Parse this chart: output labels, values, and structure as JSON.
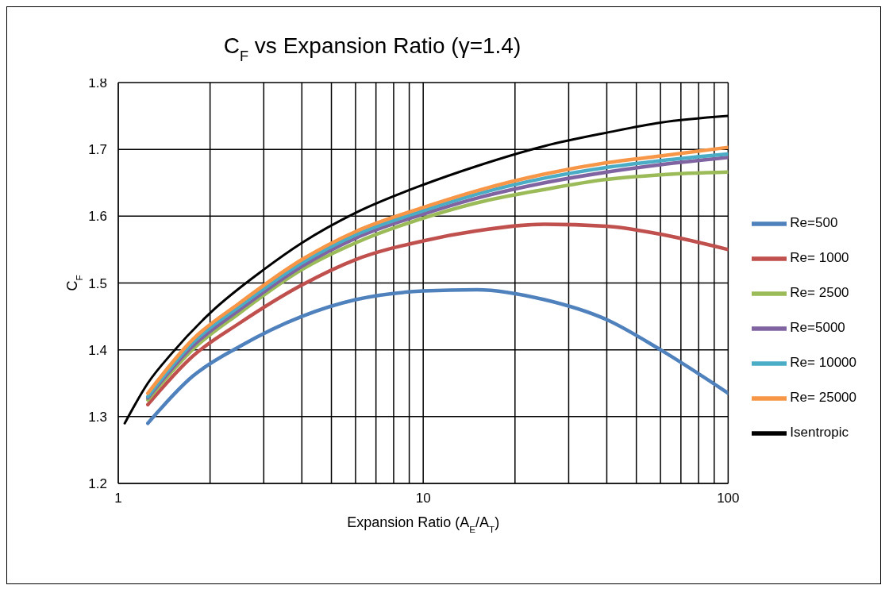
{
  "chart_data": {
    "type": "line",
    "title": "C$_{F}$  vs Expansion Ratio (γ=1.4)",
    "xlabel": "Expansion Ratio (A$_{E}$/A$_{T}$)",
    "ylabel": "C$_{F}$",
    "log": "x",
    "grid": true,
    "legend": "right",
    "marker": "none",
    "line_style": "solid",
    "xlim": [
      1,
      100
    ],
    "ylim": [
      1.2,
      1.8
    ],
    "xticks": [
      1,
      {
        "value": 2,
        "label": null
      },
      {
        "value": 3,
        "label": null
      },
      {
        "value": 4,
        "label": null
      },
      {
        "value": 5,
        "label": null
      },
      {
        "value": 6,
        "label": null
      },
      {
        "value": 7,
        "label": null
      },
      {
        "value": 8,
        "label": null
      },
      {
        "value": 9,
        "label": null
      },
      10,
      {
        "value": 20,
        "label": null
      },
      {
        "value": 30,
        "label": null
      },
      {
        "value": 40,
        "label": null
      },
      {
        "value": 50,
        "label": null
      },
      {
        "value": 60,
        "label": null
      },
      {
        "value": 70,
        "label": null
      },
      {
        "value": 80,
        "label": null
      },
      {
        "value": 90,
        "label": null
      },
      100
    ],
    "yticks": [
      1.2,
      1.3,
      1.4,
      1.5,
      1.6,
      1.7,
      1.8
    ],
    "x": [
      1.25,
      1.75,
      2.5,
      4,
      6,
      10,
      15,
      25,
      40,
      60,
      100
    ],
    "series": [
      {
        "name": "Re=500",
        "color": "#4f81bd",
        "values": [
          1.29,
          1.36,
          1.405,
          1.45,
          1.475,
          1.488,
          1.49,
          1.475,
          1.445,
          1.4,
          1.335
        ]
      },
      {
        "name": "Re= 1000",
        "color": "#c0504d",
        "values": [
          1.318,
          1.39,
          1.44,
          1.497,
          1.535,
          1.563,
          1.578,
          1.588,
          1.585,
          1.573,
          1.55
        ]
      },
      {
        "name": "Re= 2500",
        "color": "#9bbb59",
        "values": [
          1.325,
          1.4,
          1.455,
          1.52,
          1.56,
          1.597,
          1.62,
          1.64,
          1.655,
          1.662,
          1.666
        ]
      },
      {
        "name": "Re=5000",
        "color": "#8064a2",
        "values": [
          1.328,
          1.405,
          1.46,
          1.525,
          1.567,
          1.603,
          1.627,
          1.65,
          1.666,
          1.677,
          1.688
        ]
      },
      {
        "name": "Re= 10000",
        "color": "#4bacc6",
        "values": [
          1.33,
          1.41,
          1.465,
          1.53,
          1.572,
          1.608,
          1.633,
          1.657,
          1.673,
          1.683,
          1.693
        ]
      },
      {
        "name": "Re= 25000",
        "color": "#f79646",
        "values": [
          1.335,
          1.415,
          1.47,
          1.535,
          1.577,
          1.613,
          1.638,
          1.663,
          1.68,
          1.69,
          1.703
        ]
      },
      {
        "name": "Isentropic",
        "color": "#000000",
        "x": [
          1.05,
          1.25,
          1.5,
          2,
          3,
          4,
          6,
          10,
          15,
          25,
          40,
          60,
          100
        ],
        "values": [
          1.29,
          1.35,
          1.395,
          1.455,
          1.52,
          1.56,
          1.605,
          1.647,
          1.675,
          1.705,
          1.725,
          1.74,
          1.75
        ]
      }
    ]
  }
}
